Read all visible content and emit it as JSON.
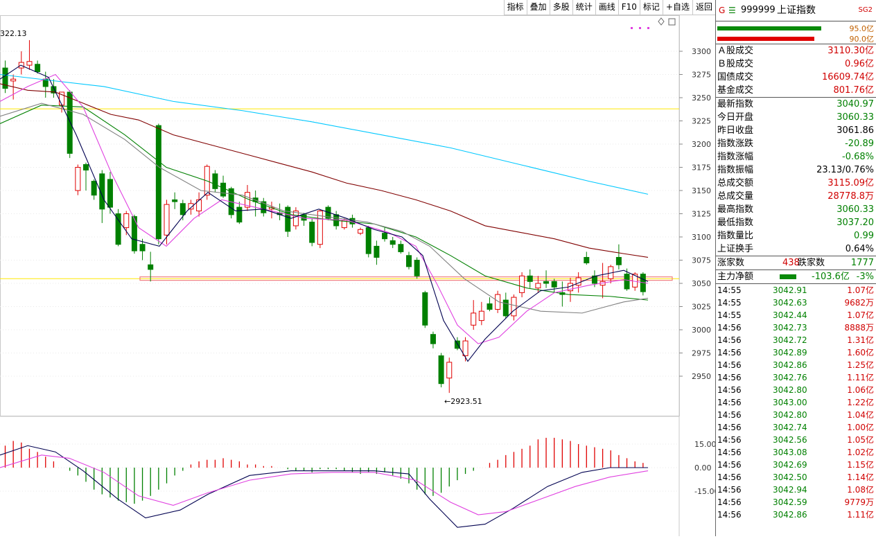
{
  "toolbar": {
    "buttons": [
      "指标",
      "叠加",
      "多股",
      "统计",
      "画线",
      "F10",
      "标记",
      "+自选",
      "返回"
    ]
  },
  "chart": {
    "high_label": "322.13",
    "low_label": "2923.51",
    "y_ticks": [
      "3300",
      "3275",
      "3250",
      "3225",
      "3200",
      "3175",
      "3150",
      "3125",
      "3100",
      "3075",
      "3050",
      "3025",
      "3000",
      "2975",
      "2950"
    ],
    "macd_ticks": [
      "15.00",
      "0.00",
      "-15.00"
    ],
    "colors": {
      "up": "#e00000",
      "down": "#008000",
      "ma5": "#000050",
      "ma10": "#e040e0",
      "ma20": "#808080",
      "ma30": "#008000",
      "ma60": "#800000",
      "ma120": "#00c8ff",
      "hline": "#ffe800"
    }
  },
  "quote": {
    "code": "999999",
    "name": "上证指数",
    "tag": "SG2",
    "bar_top_value": "95.0亿",
    "bar_bot_value": "90.0亿",
    "vol_rows": [
      {
        "label": "Ａ股成交",
        "value": "3110.30亿"
      },
      {
        "label": "Ｂ股成交",
        "value": "0.96亿"
      },
      {
        "label": "国债成交",
        "value": "16609.74亿"
      },
      {
        "label": "基金成交",
        "value": "801.76亿"
      }
    ],
    "stat_rows": [
      {
        "label": "最新指数",
        "value": "3040.97",
        "color": "green"
      },
      {
        "label": "今日开盘",
        "value": "3060.33",
        "color": "green"
      },
      {
        "label": "昨日收盘",
        "value": "3061.86",
        "color": "blk"
      },
      {
        "label": "指数涨跌",
        "value": "-20.89",
        "color": "green"
      },
      {
        "label": "指数涨幅",
        "value": "-0.68%",
        "color": "green"
      },
      {
        "label": "指数振幅",
        "value": "23.13/0.76%",
        "color": "blk"
      },
      {
        "label": "总成交额",
        "value": "3115.09亿",
        "color": "red"
      },
      {
        "label": "总成交量",
        "value": "28778.8万",
        "color": "red"
      },
      {
        "label": "最高指数",
        "value": "3060.33",
        "color": "green"
      },
      {
        "label": "最低指数",
        "value": "3037.20",
        "color": "green"
      },
      {
        "label": "指数量比",
        "value": "0.99",
        "color": "green"
      },
      {
        "label": "上证换手",
        "value": "0.64%",
        "color": "blk"
      }
    ],
    "up_label": "涨家数",
    "up_count": "438",
    "down_label": "跌家数",
    "down_count": "1777",
    "flow_label": "主力净额",
    "flow_value": "-103.6亿",
    "flow_pct": "-3%",
    "ticks": [
      {
        "time": "14:55",
        "price": "3042.91",
        "amount": "1.07亿"
      },
      {
        "time": "14:55",
        "price": "3042.63",
        "amount": "9682万"
      },
      {
        "time": "14:55",
        "price": "3042.44",
        "amount": "1.07亿"
      },
      {
        "time": "14:56",
        "price": "3042.73",
        "amount": "8888万"
      },
      {
        "time": "14:56",
        "price": "3042.72",
        "amount": "1.31亿"
      },
      {
        "time": "14:56",
        "price": "3042.89",
        "amount": "1.60亿"
      },
      {
        "time": "14:56",
        "price": "3042.86",
        "amount": "1.25亿"
      },
      {
        "time": "14:56",
        "price": "3042.76",
        "amount": "1.11亿"
      },
      {
        "time": "14:56",
        "price": "3042.80",
        "amount": "1.06亿"
      },
      {
        "time": "14:56",
        "price": "3043.00",
        "amount": "1.22亿"
      },
      {
        "time": "14:56",
        "price": "3042.80",
        "amount": "1.04亿"
      },
      {
        "time": "14:56",
        "price": "3042.74",
        "amount": "1.00亿"
      },
      {
        "time": "14:56",
        "price": "3042.56",
        "amount": "1.05亿"
      },
      {
        "time": "14:56",
        "price": "3043.08",
        "amount": "1.02亿"
      },
      {
        "time": "14:56",
        "price": "3042.69",
        "amount": "1.15亿"
      },
      {
        "time": "14:56",
        "price": "3042.50",
        "amount": "1.14亿"
      },
      {
        "time": "14:56",
        "price": "3042.94",
        "amount": "1.08亿"
      },
      {
        "time": "14:56",
        "price": "3042.59",
        "amount": "9779万"
      },
      {
        "time": "14:56",
        "price": "3042.86",
        "amount": "1.11亿"
      }
    ]
  }
}
